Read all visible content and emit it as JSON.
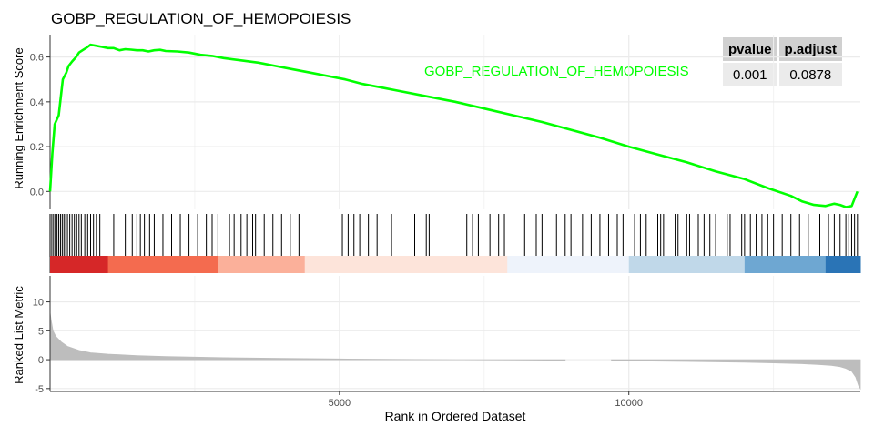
{
  "title": "GOBP_REGULATION_OF_HEMOPOIESIS",
  "table": {
    "headers": [
      "pvalue",
      "p.adjust"
    ],
    "row": [
      "0.001",
      "0.0878"
    ]
  },
  "colors": {
    "es_line": "#00ff00",
    "hist": "#bdbdbd",
    "grid": "#ebebeb"
  },
  "chart_data": [
    {
      "type": "line",
      "title": "",
      "ylabel": "Running Enrichment Score",
      "xlim": [
        0,
        14000
      ],
      "ylim": [
        -0.08,
        0.7
      ],
      "yticks": [
        0.0,
        0.2,
        0.4,
        0.6
      ],
      "ytick_labels": [
        "0.0",
        "0.2",
        "0.4",
        "0.6"
      ],
      "grid": true,
      "legend_position": "top-right",
      "series": [
        {
          "name": "GOBP_REGULATION_OF_HEMOPOIESIS",
          "color": "#00ff00",
          "x": [
            0,
            40,
            80,
            150,
            220,
            280,
            320,
            380,
            450,
            500,
            560,
            620,
            650,
            700,
            800,
            900,
            1000,
            1100,
            1200,
            1300,
            1400,
            1500,
            1600,
            1700,
            1800,
            1900,
            2000,
            2200,
            2400,
            2600,
            2800,
            3000,
            3300,
            3600,
            3900,
            4200,
            4500,
            4800,
            5100,
            5400,
            5700,
            6000,
            6500,
            7000,
            7500,
            8000,
            8500,
            9000,
            9500,
            10000,
            10500,
            11000,
            11500,
            12000,
            12400,
            12800,
            13000,
            13200,
            13400,
            13550,
            13650,
            13750,
            13850,
            13950
          ],
          "y": [
            0.0,
            0.17,
            0.3,
            0.34,
            0.5,
            0.53,
            0.56,
            0.58,
            0.6,
            0.62,
            0.63,
            0.64,
            0.645,
            0.655,
            0.65,
            0.645,
            0.64,
            0.64,
            0.63,
            0.635,
            0.633,
            0.63,
            0.63,
            0.625,
            0.63,
            0.632,
            0.627,
            0.625,
            0.62,
            0.61,
            0.605,
            0.595,
            0.585,
            0.575,
            0.56,
            0.545,
            0.53,
            0.515,
            0.5,
            0.48,
            0.465,
            0.45,
            0.425,
            0.4,
            0.37,
            0.34,
            0.31,
            0.275,
            0.24,
            0.2,
            0.165,
            0.13,
            0.09,
            0.055,
            0.015,
            -0.02,
            -0.045,
            -0.06,
            -0.065,
            -0.055,
            -0.06,
            -0.07,
            -0.065,
            0.0
          ]
        }
      ]
    },
    {
      "type": "barcode",
      "hits": [
        0,
        30,
        60,
        90,
        120,
        150,
        180,
        210,
        240,
        270,
        300,
        340,
        380,
        420,
        460,
        500,
        540,
        600,
        650,
        700,
        750,
        800,
        860,
        1100,
        1300,
        1420,
        1500,
        1560,
        1630,
        1720,
        1800,
        1950,
        2100,
        2250,
        2400,
        2550,
        2700,
        2800,
        2900,
        3100,
        3180,
        3300,
        3400,
        3500,
        3550,
        3700,
        3850,
        4000,
        4150,
        4300,
        5050,
        5150,
        5250,
        5350,
        5500,
        5650,
        5900,
        6300,
        6500,
        6550,
        7200,
        7300,
        7400,
        7600,
        7750,
        7850,
        8200,
        8400,
        8500,
        8750,
        8900,
        9000,
        9200,
        9350,
        9500,
        9650,
        9800,
        9900,
        10100,
        10200,
        10300,
        10500,
        10550,
        10600,
        10800,
        10850,
        11000,
        11050,
        11200,
        11300,
        11400,
        11500,
        11700,
        11750,
        11950,
        12000,
        12100,
        12200,
        12300,
        12400,
        12500,
        12650,
        12800,
        12950,
        13100,
        13300,
        13450,
        13550,
        13650,
        13750,
        13800,
        13850,
        13900,
        13950
      ]
    },
    {
      "type": "area",
      "xlabel": "Rank in Ordered Dataset",
      "ylabel": "Ranked List Metric",
      "xlim": [
        0,
        14000
      ],
      "ylim": [
        -5.5,
        14.5
      ],
      "yticks": [
        -5,
        0,
        5,
        10
      ],
      "ytick_labels": [
        "-5",
        "0",
        "5",
        "10"
      ],
      "xticks": [
        5000,
        10000
      ],
      "xtick_labels": [
        "5000",
        "10000"
      ],
      "gap": [
        8900,
        9700
      ],
      "x": [
        0,
        15,
        50,
        100,
        200,
        300,
        500,
        700,
        1000,
        1500,
        2000,
        3000,
        4000,
        5000,
        6000,
        7000,
        8000,
        9000,
        10000,
        11000,
        12000,
        12500,
        13000,
        13300,
        13500,
        13650,
        13750,
        13850,
        13920,
        13970,
        14000
      ],
      "y": [
        8.2,
        7.0,
        5.0,
        4.0,
        3.0,
        2.3,
        1.6,
        1.2,
        0.95,
        0.7,
        0.55,
        0.35,
        0.22,
        0.12,
        0.05,
        0.0,
        -0.05,
        -0.1,
        -0.2,
        -0.3,
        -0.45,
        -0.55,
        -0.7,
        -0.85,
        -1.0,
        -1.2,
        -1.5,
        -2.0,
        -3.0,
        -4.5,
        -5.0
      ]
    }
  ]
}
